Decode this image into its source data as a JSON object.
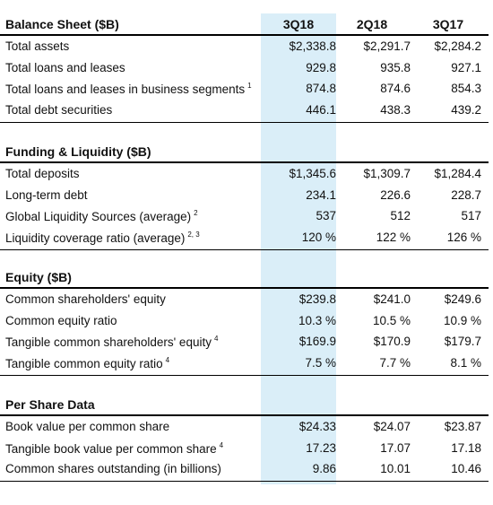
{
  "columns": [
    "3Q18",
    "2Q18",
    "3Q17"
  ],
  "sections": [
    {
      "title": "Balance Sheet ($B)",
      "rows": [
        {
          "label": "Total assets",
          "values": [
            "$2,338.8",
            "$2,291.7",
            "$2,284.2"
          ]
        },
        {
          "label": "Total loans and leases",
          "values": [
            "929.8",
            "935.8",
            "927.1"
          ]
        },
        {
          "label": "Total loans and leases in business segments",
          "note": "1",
          "values": [
            "874.8",
            "874.6",
            "854.3"
          ]
        },
        {
          "label": "Total debt securities",
          "values": [
            "446.1",
            "438.3",
            "439.2"
          ]
        }
      ]
    },
    {
      "title": "Funding & Liquidity ($B)",
      "rows": [
        {
          "label": "Total deposits",
          "values": [
            "$1,345.6",
            "$1,309.7",
            "$1,284.4"
          ]
        },
        {
          "label": "Long-term debt",
          "values": [
            "234.1",
            "226.6",
            "228.7"
          ]
        },
        {
          "label": "Global Liquidity Sources (average)",
          "note": "2",
          "values": [
            "537",
            "512",
            "517"
          ]
        },
        {
          "label": "Liquidity coverage ratio (average)",
          "note": "2, 3",
          "values": [
            "120 %",
            "122 %",
            "126 %"
          ]
        }
      ]
    },
    {
      "title": "Equity ($B)",
      "rows": [
        {
          "label": "Common shareholders' equity",
          "values": [
            "$239.8",
            "$241.0",
            "$249.6"
          ]
        },
        {
          "label": "Common equity ratio",
          "values": [
            "10.3 %",
            "10.5 %",
            "10.9 %"
          ]
        },
        {
          "label": "Tangible common shareholders' equity",
          "note": "4",
          "values": [
            "$169.9",
            "$170.9",
            "$179.7"
          ]
        },
        {
          "label": "Tangible common equity ratio",
          "note": "4",
          "values": [
            "7.5 %",
            "7.7 %",
            "8.1 %"
          ]
        }
      ]
    },
    {
      "title": "Per Share Data",
      "rows": [
        {
          "label": "Book value per common share",
          "values": [
            "$24.33",
            "$24.07",
            "$23.87"
          ]
        },
        {
          "label": "Tangible book value per common share",
          "note": "4",
          "values": [
            "17.23",
            "17.07",
            "17.18"
          ]
        },
        {
          "label": "Common shares outstanding (in billions)",
          "values": [
            "9.86",
            "10.01",
            "10.46"
          ]
        }
      ]
    }
  ]
}
